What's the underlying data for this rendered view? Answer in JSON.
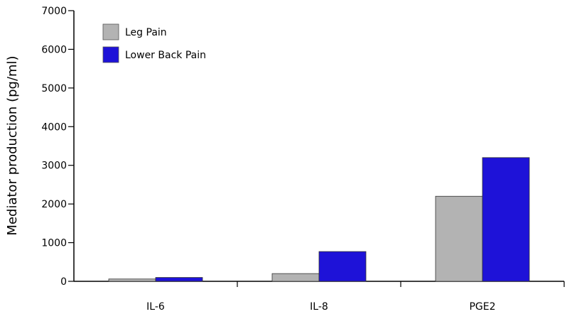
{
  "chart_data": {
    "type": "bar",
    "categories": [
      "IL-6",
      "IL-8",
      "PGE2"
    ],
    "series": [
      {
        "name": "Leg Pain",
        "color": "#b3b3b3",
        "values": [
          60,
          200,
          2200
        ]
      },
      {
        "name": "Lower Back Pain",
        "color": "#1e12d8",
        "values": [
          100,
          770,
          3200
        ]
      }
    ],
    "ylabel": "Mediator production (pg/ml)",
    "xlabel": "",
    "ylim": [
      0,
      7000
    ],
    "yticks": [
      0,
      1000,
      2000,
      3000,
      4000,
      5000,
      6000,
      7000
    ],
    "grid": false,
    "legend_position": "top-left"
  }
}
